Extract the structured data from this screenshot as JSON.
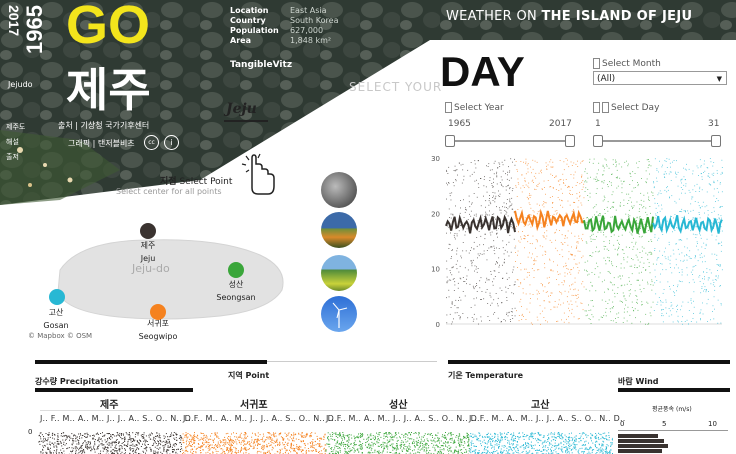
{
  "hero": {
    "year_end": "2017",
    "year_start": "1965",
    "go_text": "GO",
    "jeju_korean": "제주",
    "jeju_label": "Jejudo",
    "credit_line1": "출처 | 기상청 국가기후센터",
    "credit_line2": "그래픽 | 탠저블비츠",
    "side_korean1": "제주도",
    "side_korean2": "해설",
    "side_korean3": "출저",
    "brand": "TangibleVitz",
    "logo_text": "Jeju",
    "title_prefix": "WEATHER ON",
    "title_main": "THE ISLAND OF JEJU",
    "info": [
      {
        "label": "Location",
        "value": "East Asia"
      },
      {
        "label": "Country",
        "value": "South Korea"
      },
      {
        "label": "Population",
        "value": "627,000"
      },
      {
        "label": "Area",
        "value": "1,848 km²"
      }
    ]
  },
  "day_section": {
    "select_your": "SELECT YOUR",
    "day_big": "DAY",
    "select_month_label": "Select Month",
    "select_month_value": "(All)",
    "select_year_label": "Select Year",
    "year_min": "1965",
    "year_max": "2017",
    "select_day_label": "Select Day",
    "day_min": "1",
    "day_max": "31"
  },
  "map": {
    "select_point_korean": "지점",
    "select_point": "Select Point",
    "select_center": "Select center for all points",
    "island_label": "Jeju-do",
    "credits": "© Mapbox © OSM",
    "points": [
      {
        "korean": "제주",
        "name": "Jeju",
        "color": "#3a3330"
      },
      {
        "korean": "성산",
        "name": "Seongsan",
        "color": "#3aa63a"
      },
      {
        "korean": "고산",
        "name": "Gosan",
        "color": "#28b8d4"
      },
      {
        "korean": "서귀포",
        "name": "Seogwipo",
        "color": "#f5821f"
      }
    ]
  },
  "chart_data": {
    "type": "scatter",
    "ylim": [
      0,
      30
    ],
    "yticks": [
      0,
      10,
      20,
      30
    ],
    "series": [
      {
        "color": "#3a3330",
        "mean": 18
      },
      {
        "color": "#f5821f",
        "mean": 19
      },
      {
        "color": "#3aa63a",
        "mean": 18
      },
      {
        "color": "#28b8d4",
        "mean": 18
      }
    ]
  },
  "bottom": {
    "precip_korean": "강수량",
    "precip": "Precipitation",
    "point_korean": "지역",
    "point": "Point",
    "temp_korean": "기온",
    "temp": "Temperature",
    "wind_korean": "바람",
    "wind": "Wind",
    "regions": [
      "제주",
      "서귀포",
      "성산",
      "고산"
    ],
    "months": "J.. F.. M.. A.. M.. J.. J.. A.. S.. O.. N.. D..",
    "zero_tick": "0",
    "wind_axis_label": "평균풍속 (m/s)",
    "wind_ticks": [
      "0",
      "5",
      "10"
    ]
  },
  "colors": {
    "jeju": "#3a3330",
    "seogwipo": "#f5821f",
    "seongsan": "#3aa63a",
    "gosan": "#28b8d4",
    "go_yellow": "#f3e51c"
  }
}
